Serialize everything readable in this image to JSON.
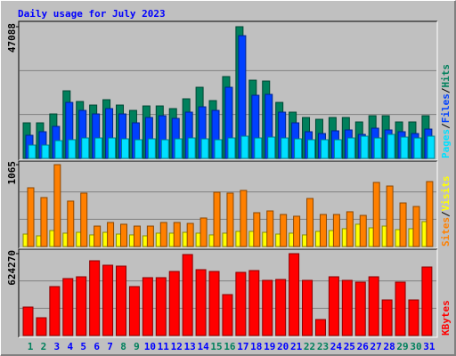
{
  "chart_data": [
    {
      "type": "bar",
      "title": "Daily usage for July 2023",
      "ylim": [
        0,
        47088
      ],
      "yticks": [
        47088
      ],
      "legend_separator": "/",
      "series": [
        {
          "name": "Hits",
          "color": "#00805c",
          "values": [
            12720,
            12720,
            15900,
            24170,
            20350,
            19080,
            20990,
            19080,
            17170,
            18760,
            18760,
            17810,
            21310,
            25440,
            20670,
            29260,
            47088,
            27980,
            27670,
            20030,
            16540,
            14630,
            13990,
            14630,
            14630,
            13040,
            15260,
            15260,
            13040,
            13040,
            15260
          ]
        },
        {
          "name": "Files",
          "color": "#0040ff",
          "values": [
            8270,
            9540,
            11450,
            20030,
            17170,
            15900,
            17810,
            15900,
            12720,
            14630,
            15260,
            14310,
            16540,
            18440,
            17170,
            25440,
            43880,
            22580,
            22900,
            16540,
            12720,
            9540,
            8900,
            9860,
            10180,
            8590,
            10810,
            10180,
            9540,
            8900,
            10490
          ]
        },
        {
          "name": "Pages",
          "color": "#00e0ff",
          "values": [
            4770,
            4770,
            6360,
            6680,
            7310,
            7310,
            7310,
            7000,
            6680,
            7000,
            6680,
            7000,
            7310,
            7000,
            6680,
            7310,
            7950,
            7310,
            7630,
            7310,
            7000,
            6680,
            6680,
            6680,
            7310,
            7950,
            7310,
            8590,
            7630,
            7310,
            7950
          ]
        }
      ]
    },
    {
      "type": "bar",
      "ylim": [
        0,
        1065
      ],
      "yticks": [
        1065
      ],
      "legend_separator": "/",
      "series": [
        {
          "name": "Visits",
          "color": "#ffff00",
          "values": [
            162,
            139,
            208,
            174,
            185,
            151,
            185,
            162,
            151,
            139,
            174,
            174,
            185,
            174,
            151,
            174,
            197,
            197,
            185,
            162,
            174,
            151,
            197,
            208,
            232,
            290,
            243,
            266,
            220,
            232,
            324
          ]
        },
        {
          "name": "Sites",
          "color": "#ff8000",
          "values": [
            764,
            637,
            1065,
            591,
            695,
            266,
            313,
            290,
            266,
            266,
            313,
            313,
            301,
            371,
            706,
            695,
            730,
            440,
            463,
            417,
            394,
            625,
            417,
            417,
            452,
            405,
            834,
            787,
            567,
            521,
            845
          ]
        }
      ]
    },
    {
      "type": "bar",
      "ylim": [
        0,
        624270
      ],
      "yticks": [
        624270
      ],
      "categories": [
        "1",
        "2",
        "3",
        "4",
        "5",
        "6",
        "7",
        "8",
        "9",
        "10",
        "11",
        "12",
        "13",
        "14",
        "15",
        "16",
        "17",
        "18",
        "19",
        "20",
        "21",
        "22",
        "23",
        "24",
        "25",
        "26",
        "27",
        "28",
        "29",
        "30",
        "31"
      ],
      "category_colors": [
        "#00805c",
        "#00805c",
        "#0000ff",
        "#0000ff",
        "#0000ff",
        "#0000ff",
        "#0000ff",
        "#00805c",
        "#00805c",
        "#0000ff",
        "#0000ff",
        "#0000ff",
        "#0000ff",
        "#0000ff",
        "#00805c",
        "#00805c",
        "#0000ff",
        "#0000ff",
        "#0000ff",
        "#0000ff",
        "#0000ff",
        "#00805c",
        "#00805c",
        "#0000ff",
        "#0000ff",
        "#0000ff",
        "#0000ff",
        "#0000ff",
        "#00805c",
        "#00805c",
        "#0000ff"
      ],
      "series": [
        {
          "name": "KBytes",
          "color": "#ff0000",
          "values": [
            217150,
            135720,
            373230,
            434300,
            447880,
            570020,
            536090,
            529310,
            373230,
            441090,
            441090,
            488590,
            617530,
            502160,
            488590,
            312160,
            481800,
            495380,
            420730,
            427520,
            624270,
            420730,
            122150,
            447880,
            420730,
            407160,
            447880,
            271440,
            407160,
            271440,
            522520
          ]
        }
      ]
    }
  ]
}
